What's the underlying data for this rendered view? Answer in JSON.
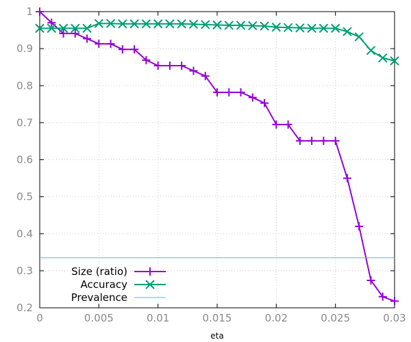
{
  "chart_data": {
    "type": "line",
    "xlabel": "eta",
    "ylabel": "",
    "xlim": [
      0,
      0.03
    ],
    "ylim": [
      0.2,
      1
    ],
    "x_ticks": [
      "0",
      "0.005",
      "0.01",
      "0.015",
      "0.02",
      "0.025",
      "0.03"
    ],
    "y_ticks": [
      "0.2",
      "0.3",
      "0.4",
      "0.5",
      "0.6",
      "0.7",
      "0.8",
      "0.9",
      "1"
    ],
    "grid": true,
    "legend_position": "bottom-left",
    "x": [
      0,
      0.001,
      0.002,
      0.003,
      0.004,
      0.005,
      0.006,
      0.007,
      0.008,
      0.009,
      0.01,
      0.011,
      0.012,
      0.013,
      0.014,
      0.015,
      0.016,
      0.017,
      0.018,
      0.019,
      0.02,
      0.021,
      0.022,
      0.023,
      0.024,
      0.025,
      0.026,
      0.027,
      0.028,
      0.029,
      0.03
    ],
    "series": [
      {
        "name": "Size (ratio)",
        "color": "#9400d3",
        "marker": "plus",
        "values": [
          1.0,
          0.97,
          0.941,
          0.941,
          0.927,
          0.913,
          0.913,
          0.898,
          0.898,
          0.869,
          0.854,
          0.854,
          0.854,
          0.84,
          0.826,
          0.782,
          0.782,
          0.782,
          0.768,
          0.753,
          0.695,
          0.695,
          0.651,
          0.651,
          0.651,
          0.651,
          0.55,
          0.42,
          0.274,
          0.23,
          0.218
        ]
      },
      {
        "name": "Accuracy",
        "color": "#009e73",
        "marker": "cross",
        "values": [
          0.955,
          0.955,
          0.955,
          0.955,
          0.955,
          0.968,
          0.968,
          0.967,
          0.967,
          0.967,
          0.967,
          0.967,
          0.967,
          0.966,
          0.965,
          0.964,
          0.963,
          0.963,
          0.962,
          0.961,
          0.958,
          0.957,
          0.956,
          0.955,
          0.955,
          0.955,
          0.946,
          0.932,
          0.895,
          0.875,
          0.867
        ]
      },
      {
        "name": "Prevalence",
        "color": "#56b4e9",
        "marker": "none",
        "constant": 0.335
      }
    ]
  }
}
